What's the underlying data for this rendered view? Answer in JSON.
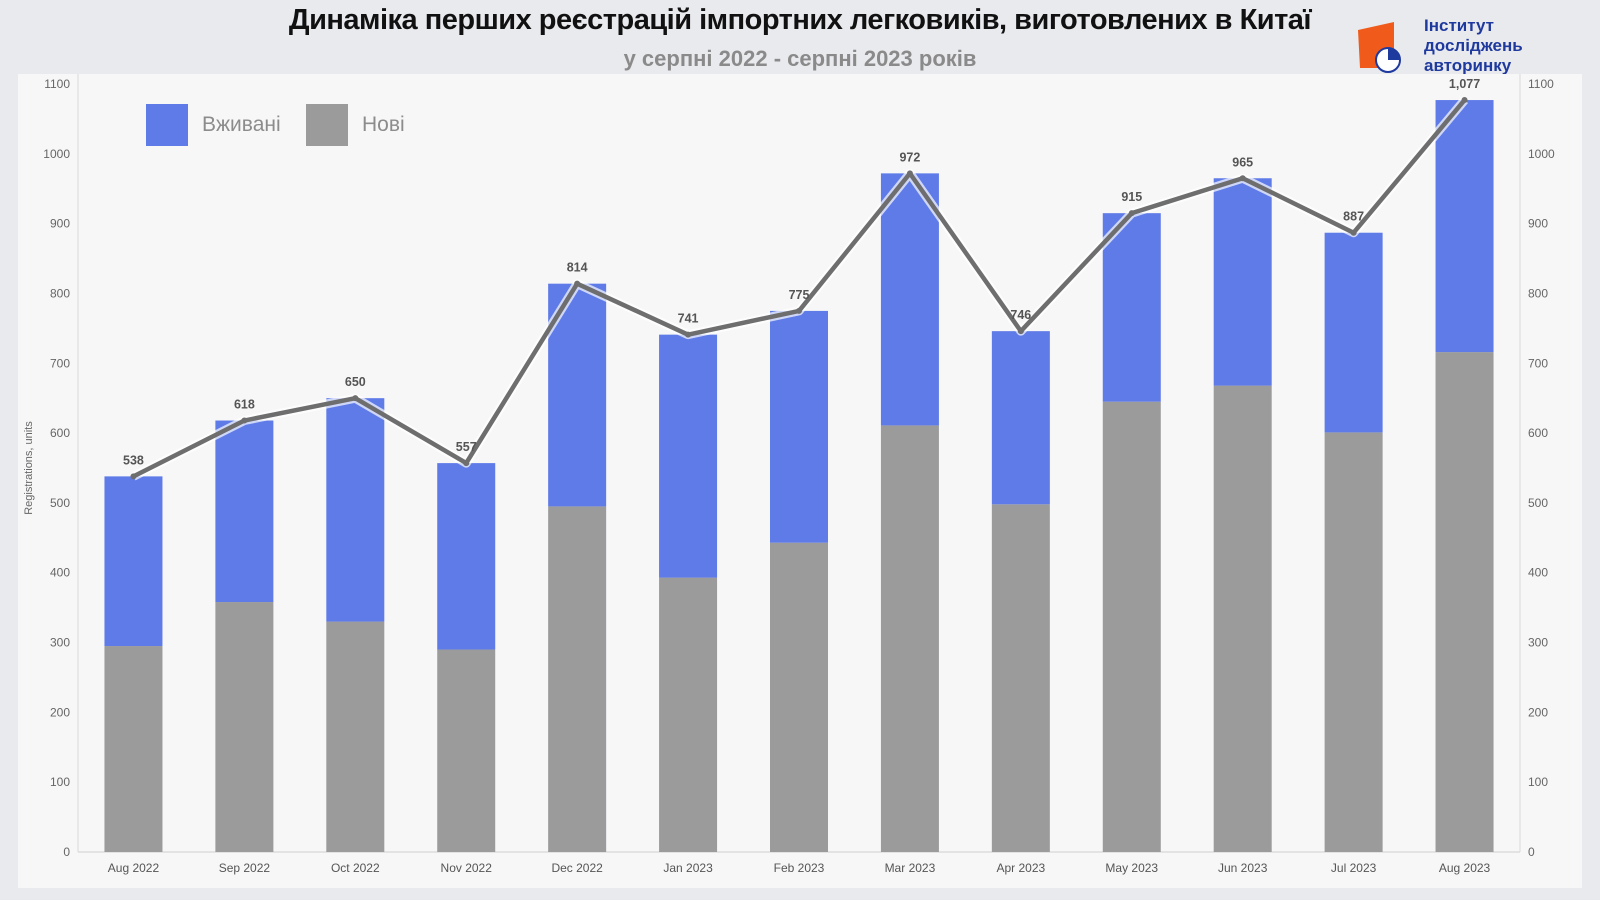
{
  "header": {
    "title": "Динаміка перших реєстрацій імпортних легковиків, виготовлених в Китаї",
    "subtitle": "у серпні 2022 - серпні 2023 років"
  },
  "logo": {
    "line1": "Інститут",
    "line2": "досліджень",
    "line3": "авторинку"
  },
  "colors": {
    "used": "#5f7be8",
    "new": "#9b9b9b",
    "line": "#6e6e6e",
    "logo_orange": "#f05a1a",
    "logo_blue": "#1f3a9e"
  },
  "legend": {
    "used_label": "Вживані",
    "new_label": "Нові"
  },
  "chart_data": {
    "type": "bar",
    "stacked": true,
    "categories": [
      "Aug 2022",
      "Sep 2022",
      "Oct 2022",
      "Nov 2022",
      "Dec 2022",
      "Jan 2023",
      "Feb 2023",
      "Mar 2023",
      "Apr 2023",
      "May 2023",
      "Jun 2023",
      "Jul 2023",
      "Aug 2023"
    ],
    "series": [
      {
        "name": "Нові",
        "values": [
          295,
          358,
          330,
          290,
          495,
          393,
          443,
          611,
          498,
          645,
          668,
          601,
          716
        ]
      },
      {
        "name": "Вживані",
        "values": [
          243,
          260,
          320,
          267,
          319,
          348,
          332,
          361,
          248,
          270,
          297,
          286,
          361
        ]
      }
    ],
    "totals": [
      538,
      618,
      650,
      557,
      814,
      741,
      775,
      972,
      746,
      915,
      965,
      887,
      1077
    ],
    "total_labels": [
      "538",
      "618",
      "650",
      "557",
      "814",
      "741",
      "775",
      "972",
      "746",
      "915",
      "965",
      "887",
      "1,077"
    ],
    "ylabel": "Registrations, units",
    "ylim": [
      0,
      1100
    ],
    "yticks": [
      0,
      100,
      200,
      300,
      400,
      500,
      600,
      700,
      800,
      900,
      1000,
      1100
    ],
    "legend_position": "top-left",
    "grid": false
  }
}
